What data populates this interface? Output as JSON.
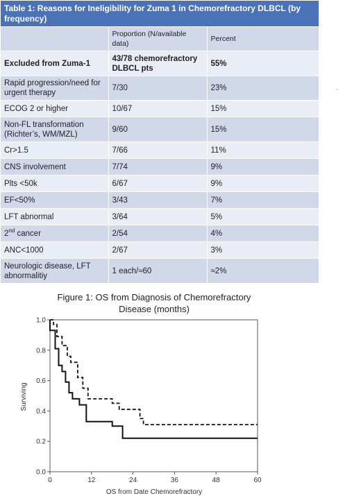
{
  "table": {
    "title": "Table 1: Reasons for Ineligibility for Zuma 1 in Chemorefractory DLBCL (by frequency)",
    "headers": [
      "",
      "Proportion (N/available data)",
      "Percent"
    ],
    "rows": [
      {
        "reason": "Excluded from Zuma-1",
        "proportion": "43/78 chemorefractory DLBCL pts",
        "percent": "55%"
      },
      {
        "reason": "Rapid progression/need for urgent therapy",
        "proportion": "7/30",
        "percent": "23%"
      },
      {
        "reason": "ECOG 2 or higher",
        "proportion": "10/67",
        "percent": "15%"
      },
      {
        "reason": "Non-FL transformation (Richter’s, WM/MZL)",
        "proportion": "9/60",
        "percent": "15%"
      },
      {
        "reason": "Cr>1.5",
        "proportion": "7/66",
        "percent": "11%"
      },
      {
        "reason": "CNS involvement",
        "proportion": "7/74",
        "percent": "9%"
      },
      {
        "reason": "Plts <50k",
        "proportion": "6/67",
        "percent": "9%"
      },
      {
        "reason": "EF<50%",
        "proportion": "3/43",
        "percent": "7%"
      },
      {
        "reason": "LFT abnormal",
        "proportion": "3/64",
        "percent": "5%"
      },
      {
        "reason_base": "2",
        "reason_sup": "nd",
        "reason_rest": " cancer",
        "proportion": "2/54",
        "percent": "4%"
      },
      {
        "reason": "ANC<1000",
        "proportion": "2/67",
        "percent": "3%"
      },
      {
        "reason": "Neurologic disease, LFT abnormalitiy",
        "proportion": "1 each/≈60",
        "percent": "≈2%"
      }
    ]
  },
  "stray_mark": ".",
  "chart_data": {
    "type": "line",
    "title_line1": "Figure 1: OS from Diagnosis of Chemorefractory",
    "title_line2": "Disease (months)",
    "xlabel": "OS from Date Chemorefractory",
    "ylabel": "Surviving",
    "xlim": [
      0,
      60
    ],
    "ylim": [
      0,
      1
    ],
    "xticks": [
      0,
      12,
      24,
      36,
      48,
      60
    ],
    "yticks": [
      "0.0",
      "0.2",
      "0.4",
      "0.6",
      "0.8",
      "1.0"
    ],
    "series": [
      {
        "style": "solid",
        "points": [
          [
            0,
            1.0
          ],
          [
            0,
            0.93
          ],
          [
            1.5,
            0.93
          ],
          [
            1.5,
            0.81
          ],
          [
            2.5,
            0.81
          ],
          [
            2.5,
            0.7
          ],
          [
            3.5,
            0.7
          ],
          [
            3.5,
            0.66
          ],
          [
            4.5,
            0.66
          ],
          [
            4.5,
            0.59
          ],
          [
            5.5,
            0.59
          ],
          [
            5.5,
            0.52
          ],
          [
            6.5,
            0.52
          ],
          [
            6.5,
            0.48
          ],
          [
            8.5,
            0.48
          ],
          [
            8.5,
            0.44
          ],
          [
            10.5,
            0.44
          ],
          [
            10.5,
            0.33
          ],
          [
            18,
            0.33
          ],
          [
            18,
            0.3
          ],
          [
            21,
            0.3
          ],
          [
            21,
            0.22
          ],
          [
            60,
            0.22
          ]
        ]
      },
      {
        "style": "dashed",
        "points": [
          [
            0,
            1.0
          ],
          [
            1,
            1.0
          ],
          [
            1,
            0.97
          ],
          [
            2,
            0.97
          ],
          [
            2,
            0.89
          ],
          [
            3.5,
            0.89
          ],
          [
            3.5,
            0.83
          ],
          [
            5,
            0.83
          ],
          [
            5,
            0.76
          ],
          [
            6,
            0.76
          ],
          [
            6,
            0.72
          ],
          [
            8,
            0.72
          ],
          [
            8,
            0.62
          ],
          [
            9.5,
            0.62
          ],
          [
            9.5,
            0.55
          ],
          [
            11,
            0.55
          ],
          [
            11,
            0.48
          ],
          [
            18,
            0.48
          ],
          [
            18,
            0.45
          ],
          [
            20,
            0.45
          ],
          [
            20,
            0.41
          ],
          [
            26,
            0.41
          ],
          [
            26,
            0.35
          ],
          [
            27,
            0.35
          ],
          [
            27,
            0.31
          ],
          [
            60,
            0.31
          ]
        ]
      }
    ]
  }
}
